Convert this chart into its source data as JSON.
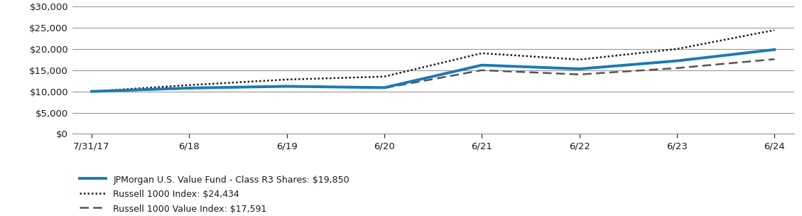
{
  "title": "",
  "x_labels": [
    "7/31/17",
    "6/18",
    "6/19",
    "6/20",
    "6/21",
    "6/22",
    "6/23",
    "6/24"
  ],
  "x_positions": [
    0,
    1,
    2,
    3,
    4,
    5,
    6,
    7
  ],
  "fund_values": [
    10000,
    10800,
    11200,
    10900,
    16200,
    15300,
    17200,
    19850
  ],
  "russell1000_values": [
    10000,
    11500,
    12800,
    13500,
    19000,
    17500,
    20000,
    24434
  ],
  "russell1000value_values": [
    10000,
    10700,
    11300,
    10800,
    15000,
    14000,
    15500,
    17591
  ],
  "fund_color": "#1A7AB8",
  "russell1000_color": "#1a1a1a",
  "russell1000value_color": "#555555",
  "ylim": [
    0,
    30000
  ],
  "yticks": [
    0,
    5000,
    10000,
    15000,
    20000,
    25000,
    30000
  ],
  "legend_labels": [
    "JPMorgan U.S. Value Fund - Class R3 Shares: $19,850",
    "Russell 1000 Index: $24,434",
    "Russell 1000 Value Index: $17,591"
  ],
  "background_color": "#ffffff",
  "grid_color": "#999999",
  "font_color": "#1a1a1a"
}
